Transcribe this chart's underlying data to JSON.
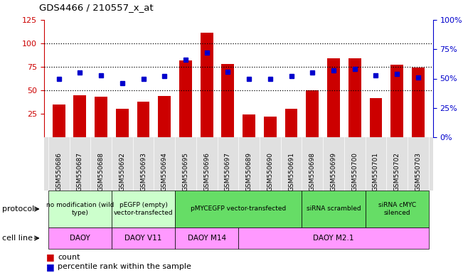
{
  "title": "GDS4466 / 210557_x_at",
  "samples": [
    "GSM550686",
    "GSM550687",
    "GSM550688",
    "GSM550692",
    "GSM550693",
    "GSM550694",
    "GSM550695",
    "GSM550696",
    "GSM550697",
    "GSM550689",
    "GSM550690",
    "GSM550691",
    "GSM550698",
    "GSM550699",
    "GSM550700",
    "GSM550701",
    "GSM550702",
    "GSM550703"
  ],
  "counts": [
    35,
    45,
    43,
    30,
    38,
    44,
    82,
    111,
    78,
    24,
    22,
    30,
    50,
    84,
    84,
    42,
    77,
    74
  ],
  "percentiles": [
    50,
    55,
    53,
    46,
    50,
    52,
    66,
    72,
    56,
    50,
    50,
    52,
    55,
    57,
    58,
    53,
    54,
    51
  ],
  "bar_color": "#cc0000",
  "dot_color": "#0000cc",
  "ylim_left": [
    0,
    125
  ],
  "ylim_right": [
    0,
    100
  ],
  "yticks_left": [
    25,
    50,
    75,
    100,
    125
  ],
  "yticks_right": [
    0,
    25,
    50,
    75,
    100
  ],
  "ytick_labels_right": [
    "0%",
    "25%",
    "50%",
    "75%",
    "100%"
  ],
  "hlines": [
    50,
    75,
    100
  ],
  "protocol_groups": [
    {
      "label": "no modification (wild\ntype)",
      "start": 0,
      "end": 3,
      "color": "#ccffcc"
    },
    {
      "label": "pEGFP (empty)\nvector-transfected",
      "start": 3,
      "end": 6,
      "color": "#ccffcc"
    },
    {
      "label": "pMYCEGFP vector-transfected",
      "start": 6,
      "end": 12,
      "color": "#66dd66"
    },
    {
      "label": "siRNA scrambled",
      "start": 12,
      "end": 15,
      "color": "#66dd66"
    },
    {
      "label": "siRNA cMYC\nsilenced",
      "start": 15,
      "end": 18,
      "color": "#66dd66"
    }
  ],
  "cellline_groups": [
    {
      "label": "DAOY",
      "start": 0,
      "end": 3,
      "color": "#ff99ff"
    },
    {
      "label": "DAOY V11",
      "start": 3,
      "end": 6,
      "color": "#ff99ff"
    },
    {
      "label": "DAOY M14",
      "start": 6,
      "end": 9,
      "color": "#ff99ff"
    },
    {
      "label": "DAOY M2.1",
      "start": 9,
      "end": 18,
      "color": "#ff99ff"
    }
  ],
  "bg_color": "#ffffff",
  "tick_color_left": "#cc0000",
  "tick_color_right": "#0000cc",
  "label_protocol": "protocol",
  "label_cellline": "cell line",
  "legend_count": "count",
  "legend_percentile": "percentile rank within the sample",
  "plot_bg": "#ffffff",
  "xticklabel_bg": "#e0e0e0"
}
